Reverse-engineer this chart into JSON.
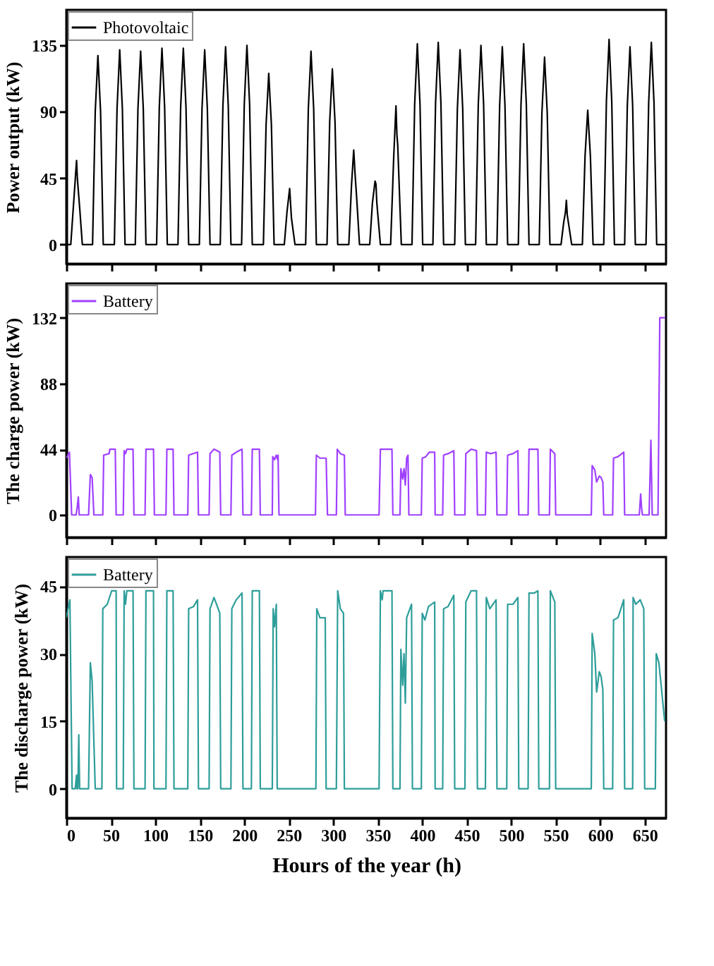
{
  "chart_data": [
    {
      "type": "line",
      "ylabel": "Power output (kW)",
      "xlim": [
        0,
        674
      ],
      "ylim": [
        -13,
        159
      ],
      "yticks": [
        0,
        45,
        90,
        135
      ],
      "xticks": [
        0,
        50,
        100,
        150,
        200,
        250,
        300,
        350,
        400,
        450,
        500,
        550,
        600,
        650
      ],
      "tick_labels": "y",
      "legend": "top left",
      "series": [
        {
          "name": "Photovoltaic",
          "color": "#000000",
          "x": [
            0,
            5,
            9,
            11.5,
            12.5,
            15,
            18,
            29.5,
            32.5,
            35.5,
            38.5,
            41.5,
            54,
            57,
            60,
            63,
            66,
            77.5,
            80.5,
            83.5,
            86.5,
            89.5,
            101.5,
            104.5,
            107.5,
            110.5,
            113.5,
            125.5,
            128.5,
            131.5,
            134.5,
            137.5,
            149.5,
            152.5,
            155.5,
            158.5,
            161.5,
            173,
            176,
            179,
            182,
            185,
            197,
            200,
            203,
            206,
            209,
            221.5,
            224.5,
            227.5,
            230.5,
            233.5,
            245,
            248,
            251,
            253,
            257,
            269,
            272,
            275,
            278,
            281,
            293,
            296,
            299,
            302,
            305,
            317.5,
            320.5,
            323,
            324.5,
            325.5,
            326.5,
            329.5,
            341,
            344,
            347,
            348,
            349,
            353,
            364.5,
            368,
            370.5,
            371.5,
            372.5,
            376.5,
            388.5,
            391.5,
            394.5,
            397.5,
            400.5,
            412,
            415,
            418,
            421,
            424,
            436.5,
            439.5,
            442.5,
            445.5,
            448.5,
            460,
            463,
            466,
            469,
            472,
            484,
            487,
            490,
            493,
            496,
            508,
            511,
            514,
            517,
            520,
            531.5,
            534.5,
            537.5,
            540.5,
            543.5,
            556,
            559,
            561,
            562,
            563,
            568,
            580,
            583,
            586,
            589,
            592,
            604,
            607,
            610,
            613,
            616,
            627.5,
            630.5,
            633.5,
            636.5,
            639.5,
            651.5,
            654.5,
            657.5,
            660.5,
            663.5,
            673
          ],
          "values": [
            0,
            0,
            35,
            57,
            44,
            25,
            0,
            0,
            90,
            128,
            90,
            0,
            0,
            92,
            132,
            92,
            0,
            0,
            92,
            131,
            92,
            0,
            0,
            93,
            133,
            93,
            0,
            0,
            93,
            133,
            93,
            0,
            0,
            92,
            132,
            92,
            0,
            0,
            94,
            134,
            94,
            0,
            0,
            95,
            135,
            95,
            0,
            0,
            81,
            116,
            81,
            0,
            0,
            22,
            38,
            18,
            0,
            0,
            92,
            131,
            92,
            0,
            0,
            83,
            119,
            83,
            0,
            0,
            40,
            64,
            48,
            39,
            30,
            0,
            0,
            28,
            43,
            41,
            28,
            0,
            0,
            60,
            94,
            75,
            67,
            0,
            0,
            95,
            136,
            95,
            0,
            0,
            96,
            137,
            96,
            0,
            0,
            92,
            132,
            92,
            0,
            0,
            95,
            135,
            95,
            0,
            0,
            94,
            134,
            94,
            0,
            0,
            95,
            136,
            95,
            0,
            0,
            89,
            127,
            89,
            0,
            0,
            15,
            22,
            30,
            20,
            0,
            0,
            60,
            91,
            60,
            0,
            0,
            97,
            139,
            97,
            0,
            0,
            94,
            134,
            94,
            0,
            0,
            96,
            137,
            96,
            0,
            0
          ]
        }
      ]
    },
    {
      "type": "line",
      "ylabel": "The charge power (kW)",
      "xlim": [
        0,
        674
      ],
      "ylim": [
        -15,
        155
      ],
      "yticks": [
        0,
        44,
        88,
        132
      ],
      "xticks": [
        0,
        50,
        100,
        150,
        200,
        250,
        300,
        350,
        400,
        450,
        500,
        550,
        600,
        650
      ],
      "tick_labels": "y",
      "legend": "top left",
      "series": [
        {
          "name": "Battery",
          "color": "#a040ff",
          "x": [
            0,
            3.5,
            6,
            11,
            12,
            13.5,
            14.5,
            25,
            27,
            29,
            31,
            41,
            42,
            48,
            49,
            55,
            56,
            64,
            65,
            66.5,
            68,
            75,
            76,
            88.5,
            89.5,
            98,
            99,
            112,
            113,
            120,
            121,
            136.5,
            137.5,
            147.5,
            148.5,
            160.5,
            161.5,
            166,
            172.5,
            173.5,
            185,
            186,
            191,
            197.5,
            198.5,
            208,
            209,
            217,
            218,
            231.5,
            232,
            234,
            236,
            237.5,
            238,
            239,
            280,
            281,
            285,
            292,
            293.5,
            303.5,
            304.5,
            308,
            312.5,
            313.5,
            351.5,
            353,
            366,
            367,
            375,
            376,
            378,
            379.5,
            381,
            382.5,
            384,
            385,
            399,
            400,
            404,
            408,
            414,
            414.5,
            423,
            424,
            429,
            435.5,
            436.5,
            448,
            449,
            455,
            461,
            462,
            471,
            472,
            477,
            483,
            484,
            495,
            496,
            502,
            507.5,
            508.5,
            519,
            520,
            530,
            531,
            543,
            544,
            549,
            550,
            590,
            591,
            594,
            596,
            599,
            601,
            603,
            604,
            614,
            615,
            620,
            626.5,
            627.5,
            644,
            645.5,
            646.5,
            647.5,
            655,
            657,
            658.5,
            665,
            667,
            673
          ],
          "values": [
            38,
            42,
            0,
            0,
            4,
            12,
            0,
            0,
            27,
            25,
            0,
            0,
            40,
            41,
            44,
            44,
            0,
            0,
            43,
            41,
            44,
            44,
            0,
            0,
            44,
            44,
            0,
            0,
            44,
            44,
            0,
            0,
            40,
            42,
            0,
            0,
            41,
            44,
            42,
            0,
            0,
            40,
            42,
            44,
            0,
            0,
            44,
            44,
            0,
            0,
            39,
            37,
            40,
            37,
            40,
            0,
            0,
            40,
            38,
            38,
            0,
            0,
            44,
            41,
            40,
            0,
            0,
            44,
            44,
            0,
            0,
            31,
            24,
            31,
            20,
            38,
            40,
            0,
            0,
            38,
            39,
            42,
            42,
            0,
            0,
            40,
            41,
            43,
            0,
            0,
            41,
            44,
            43,
            0,
            0,
            42,
            41,
            42,
            0,
            0,
            40,
            41,
            43,
            0,
            0,
            44,
            44,
            0,
            0,
            44,
            41,
            0,
            0,
            33,
            30,
            22,
            26,
            25,
            22,
            0,
            0,
            38,
            39,
            42,
            0,
            0,
            14,
            5,
            0,
            0,
            50,
            0,
            0,
            132,
            132
          ]
        }
      ]
    },
    {
      "type": "line",
      "ylabel": "The discharge power (kW)",
      "xlabel": "Hours of the year (h)",
      "xlim": [
        0,
        674
      ],
      "ylim": [
        -6.5,
        51.5
      ],
      "yticks": [
        0,
        15,
        30,
        45
      ],
      "xticks": [
        0,
        50,
        100,
        150,
        200,
        250,
        300,
        350,
        400,
        450,
        500,
        550,
        600,
        650
      ],
      "legend": "top left",
      "series": [
        {
          "name": "Battery",
          "color": "#2e9e9a",
          "x": [
            0,
            4,
            6.5,
            10,
            11.5,
            12,
            13,
            14,
            15,
            25,
            27,
            29,
            32.5,
            40,
            41,
            46,
            51,
            56,
            56.5,
            64,
            65,
            66.5,
            68,
            75,
            76,
            88.5,
            89.5,
            98,
            98.5,
            112,
            113,
            120,
            121,
            136.5,
            137.5,
            143,
            147.5,
            148.5,
            160.5,
            161.5,
            166,
            172.5,
            173.5,
            185,
            186,
            191,
            197.5,
            198.5,
            208,
            209,
            217,
            218,
            231.5,
            232.5,
            234,
            236,
            237,
            280.5,
            281.5,
            285,
            291,
            292,
            303.5,
            305,
            308,
            311.5,
            312.5,
            351.5,
            353,
            355,
            356,
            366,
            367,
            375,
            376,
            378,
            379.5,
            381,
            382.5,
            388,
            389,
            399,
            400,
            403,
            407,
            414,
            414.5,
            423,
            424,
            429,
            435.5,
            436.5,
            448,
            449,
            455,
            461,
            462,
            471,
            472,
            476,
            483,
            484,
            495,
            496,
            502,
            507.5,
            508.5,
            519,
            520,
            526,
            530,
            531,
            543,
            544,
            549,
            550,
            590,
            591,
            594,
            596,
            599,
            601,
            603,
            604,
            614,
            615,
            620,
            626.5,
            627.5,
            636.5,
            637,
            640,
            645,
            649,
            650,
            662,
            663,
            666,
            672.5
          ],
          "values": [
            38,
            42,
            0,
            0,
            3,
            0,
            0,
            12,
            0,
            0,
            28,
            24,
            0,
            0,
            40,
            41,
            44,
            44,
            0,
            0,
            44,
            41,
            44,
            44,
            0,
            0,
            44,
            44,
            0,
            0,
            44,
            44,
            0,
            0,
            40,
            40.5,
            42,
            0,
            0,
            40,
            42.5,
            39,
            0,
            0,
            40,
            42,
            43.5,
            0,
            0,
            44,
            44,
            0,
            0,
            40,
            36,
            41,
            0,
            0,
            40,
            38,
            38,
            0,
            0,
            44,
            40,
            39,
            0,
            0,
            44,
            42,
            44,
            44,
            0,
            0,
            31,
            23,
            30,
            19,
            38,
            41,
            0,
            0,
            39,
            37.5,
            40.5,
            41.5,
            0,
            0,
            40,
            40.5,
            43,
            0,
            0,
            41.5,
            44,
            44,
            0,
            0,
            42.5,
            40,
            42,
            0,
            0,
            41,
            41,
            42.5,
            0,
            0,
            43.5,
            43.5,
            44,
            0,
            0,
            44,
            41.5,
            0,
            0,
            34.5,
            30,
            21.5,
            26,
            25,
            22,
            0,
            0,
            37.5,
            38,
            42,
            0,
            0,
            42.5,
            41,
            42,
            40,
            0,
            0,
            30,
            28,
            15
          ]
        }
      ]
    }
  ]
}
